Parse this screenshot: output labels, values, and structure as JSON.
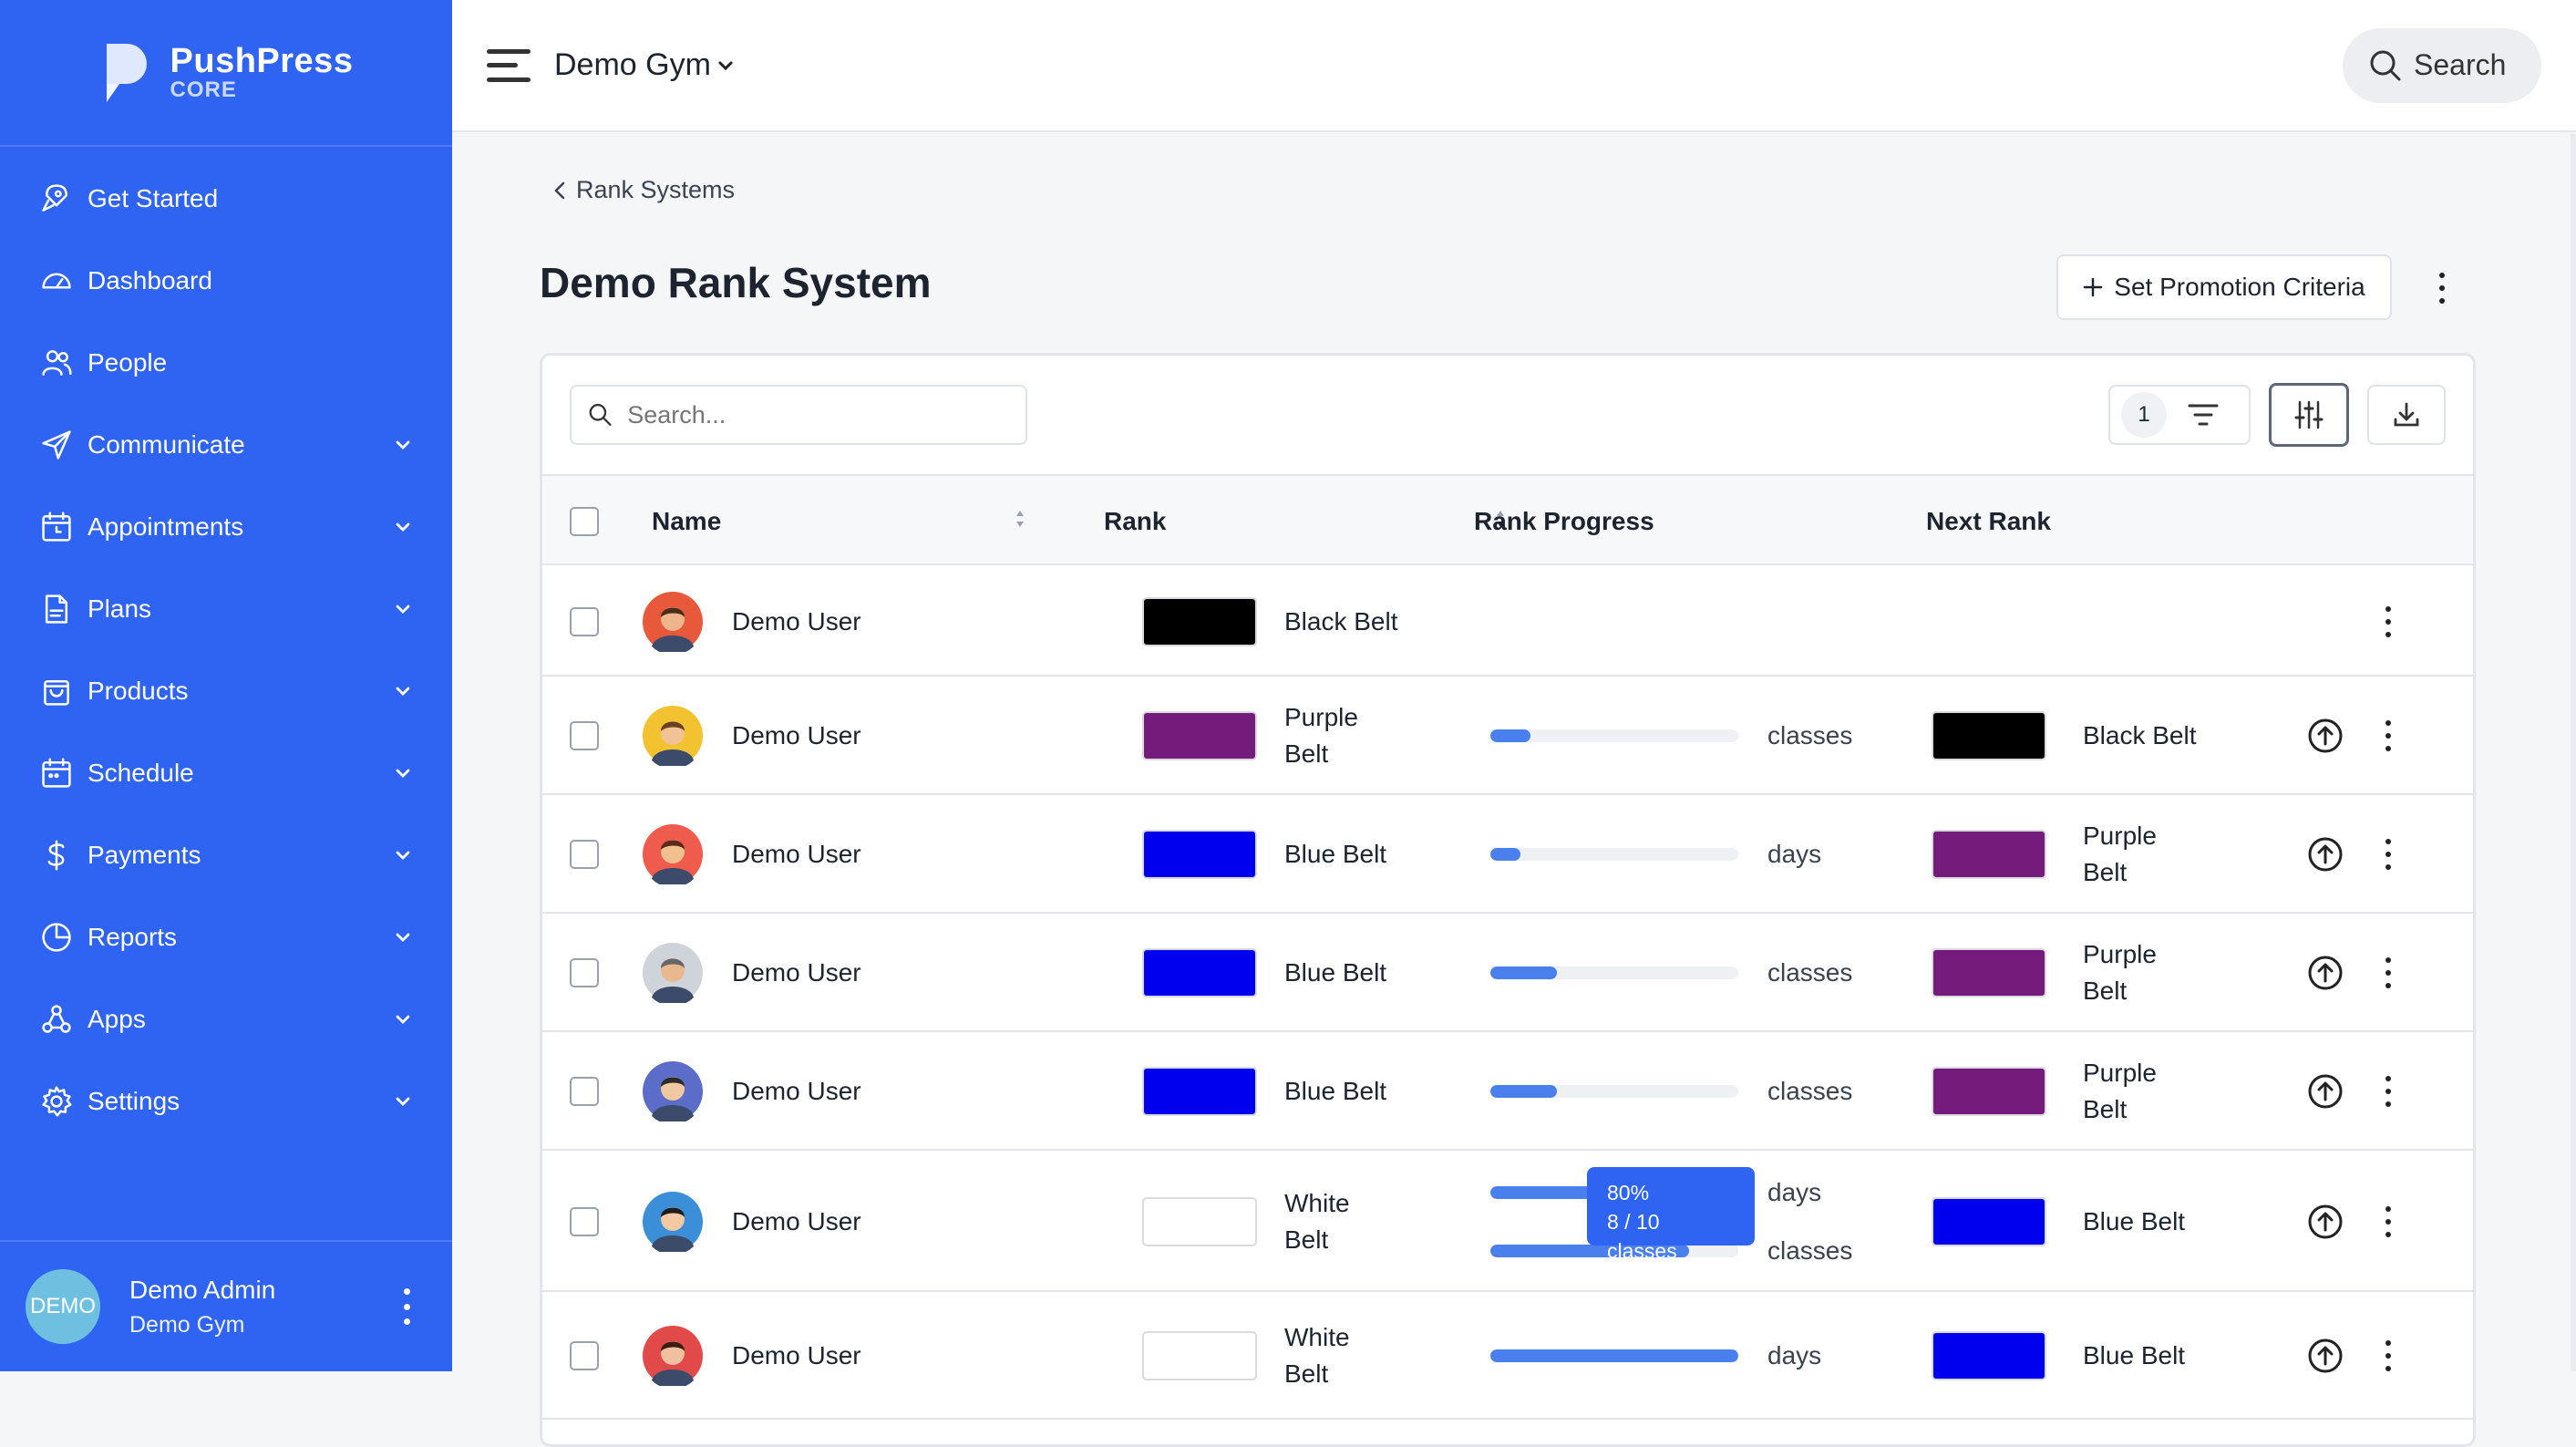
{
  "brand": {
    "name": "PushPress",
    "sub": "CORE"
  },
  "nav": [
    {
      "label": "Get Started",
      "icon": "rocket-icon",
      "chevron": false
    },
    {
      "label": "Dashboard",
      "icon": "gauge-icon",
      "chevron": false
    },
    {
      "label": "People",
      "icon": "people-icon",
      "chevron": false
    },
    {
      "label": "Communicate",
      "icon": "send-icon",
      "chevron": true
    },
    {
      "label": "Appointments",
      "icon": "calendar-clock-icon",
      "chevron": true
    },
    {
      "label": "Plans",
      "icon": "document-icon",
      "chevron": true
    },
    {
      "label": "Products",
      "icon": "bag-icon",
      "chevron": true
    },
    {
      "label": "Schedule",
      "icon": "calendar-icon",
      "chevron": true
    },
    {
      "label": "Payments",
      "icon": "dollar-icon",
      "chevron": true
    },
    {
      "label": "Reports",
      "icon": "pie-chart-icon",
      "chevron": true
    },
    {
      "label": "Apps",
      "icon": "apps-icon",
      "chevron": true
    },
    {
      "label": "Settings",
      "icon": "gear-icon",
      "chevron": true
    }
  ],
  "footer": {
    "avatar": "DEMO",
    "name": "Demo Admin",
    "gym": "Demo Gym"
  },
  "header": {
    "gym": "Demo Gym",
    "search_label": "Search"
  },
  "breadcrumb": "Rank Systems",
  "page_title": "Demo Rank System",
  "promo_button": "Set Promotion Criteria",
  "table": {
    "search_placeholder": "Search...",
    "filter_count": "1",
    "columns": [
      "Name",
      "Rank",
      "Rank Progress",
      "Next Rank"
    ],
    "rows": [
      {
        "name": "Demo User",
        "rank": "Black Belt",
        "rank_lines": [
          "Black Belt"
        ],
        "rank_color": "#000000",
        "progress": [],
        "next": null,
        "avatar": {
          "bg": "#e8593c",
          "skin": "#f0b48a",
          "hair": "#4a2e1c"
        }
      },
      {
        "name": "Demo User",
        "rank": "Purple Belt",
        "rank_lines": [
          "Purple",
          "Belt"
        ],
        "rank_color": "#741b7c",
        "progress": [
          {
            "fraction": 0.16,
            "unit": "classes"
          }
        ],
        "next": {
          "lines": [
            "Black Belt"
          ],
          "color": "#000000"
        },
        "avatar": {
          "bg": "#f2c230",
          "skin": "#f0c296",
          "hair": "#6b3f1f"
        }
      },
      {
        "name": "Demo User",
        "rank": "Blue Belt",
        "rank_lines": [
          "Blue Belt"
        ],
        "rank_color": "#0000ee",
        "progress": [
          {
            "fraction": 0.12,
            "unit": "days"
          }
        ],
        "next": {
          "lines": [
            "Purple",
            "Belt"
          ],
          "color": "#741b7c"
        },
        "avatar": {
          "bg": "#ef5b4c",
          "skin": "#f1c08f",
          "hair": "#5a2b16"
        }
      },
      {
        "name": "Demo User",
        "rank": "Blue Belt",
        "rank_lines": [
          "Blue Belt"
        ],
        "rank_color": "#0000ee",
        "progress": [
          {
            "fraction": 0.27,
            "unit": "classes"
          }
        ],
        "next": {
          "lines": [
            "Purple",
            "Belt"
          ],
          "color": "#741b7c"
        },
        "avatar": {
          "bg": "#cfd3da",
          "skin": "#e8b98e",
          "hair": "#666666"
        }
      },
      {
        "name": "Demo User",
        "rank": "Blue Belt",
        "rank_lines": [
          "Blue Belt"
        ],
        "rank_color": "#0000ee",
        "progress": [
          {
            "fraction": 0.27,
            "unit": "classes"
          }
        ],
        "next": {
          "lines": [
            "Purple",
            "Belt"
          ],
          "color": "#741b7c"
        },
        "avatar": {
          "bg": "#5b6dc8",
          "skin": "#f0c8a2",
          "hair": "#2c2c2c"
        }
      },
      {
        "name": "Demo User",
        "rank": "White Belt",
        "rank_lines": [
          "White",
          "Belt"
        ],
        "rank_color": "#ffffff",
        "progress": [
          {
            "fraction": 0.6,
            "unit": "days"
          },
          {
            "fraction": 0.8,
            "unit": "classes"
          }
        ],
        "tooltip": {
          "percent": "80%",
          "detail": "8 / 10 classes"
        },
        "next": {
          "lines": [
            "Blue Belt"
          ],
          "color": "#0000ee"
        },
        "avatar": {
          "bg": "#3b8ed8",
          "skin": "#f2c9a0",
          "hair": "#1e1e1e"
        }
      },
      {
        "name": "Demo User",
        "rank": "White Belt",
        "rank_lines": [
          "White",
          "Belt"
        ],
        "rank_color": "#ffffff",
        "progress": [
          {
            "fraction": 1.0,
            "unit": "days"
          }
        ],
        "next": {
          "lines": [
            "Blue Belt"
          ],
          "color": "#0000ee"
        },
        "avatar": {
          "bg": "#e24a4a",
          "skin": "#f0c0a0",
          "hair": "#3a1e10"
        }
      }
    ]
  }
}
